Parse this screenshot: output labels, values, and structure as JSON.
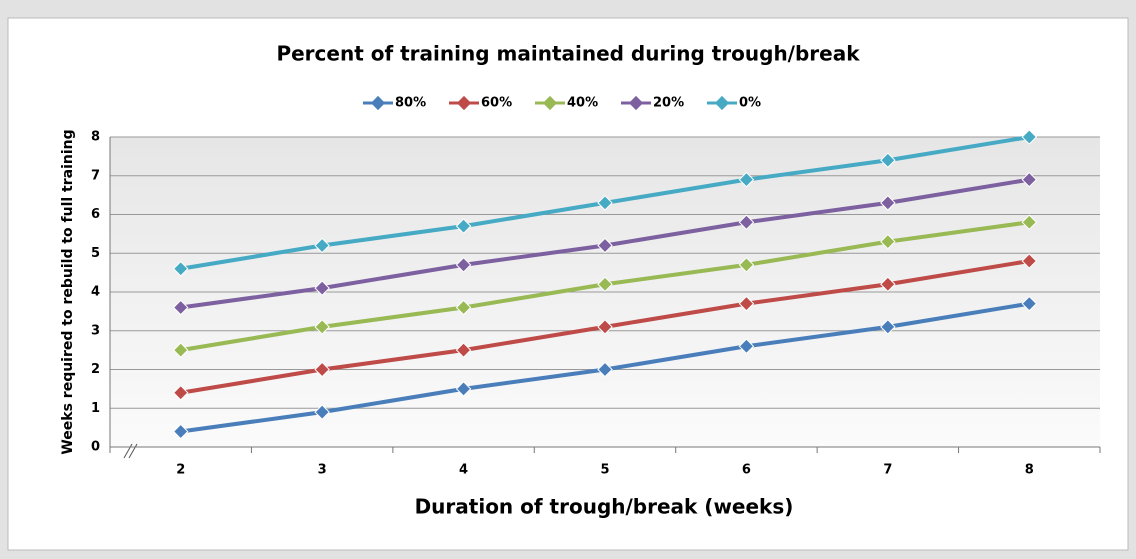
{
  "chart_data": {
    "type": "line",
    "title": "Percent of training maintained during trough/break",
    "x_label": "Duration of trough/break (weeks)",
    "y_label": "Weeks required to rebuild to full training",
    "categories": [
      "2",
      "3",
      "4",
      "5",
      "6",
      "7",
      "8"
    ],
    "series": [
      {
        "name": "80%",
        "color": "#4a7ebb",
        "values": [
          0.4,
          0.9,
          1.5,
          2.0,
          2.6,
          3.1,
          3.7
        ]
      },
      {
        "name": "60%",
        "color": "#be4b48",
        "values": [
          1.4,
          2.0,
          2.5,
          3.1,
          3.7,
          4.2,
          4.8
        ]
      },
      {
        "name": "40%",
        "color": "#98b954",
        "values": [
          2.5,
          3.1,
          3.6,
          4.2,
          4.7,
          5.3,
          5.8
        ]
      },
      {
        "name": "20%",
        "color": "#7d60a0",
        "values": [
          3.6,
          4.1,
          4.7,
          5.2,
          5.8,
          6.3,
          6.9
        ]
      },
      {
        "name": "0%",
        "color": "#46aac5",
        "values": [
          4.6,
          5.2,
          5.7,
          6.3,
          6.9,
          7.4,
          8.0
        ]
      }
    ],
    "ylim": [
      0,
      8
    ],
    "yticks": [
      0,
      1,
      2,
      3,
      4,
      5,
      6,
      7,
      8
    ],
    "grid": true,
    "legend": "top"
  }
}
